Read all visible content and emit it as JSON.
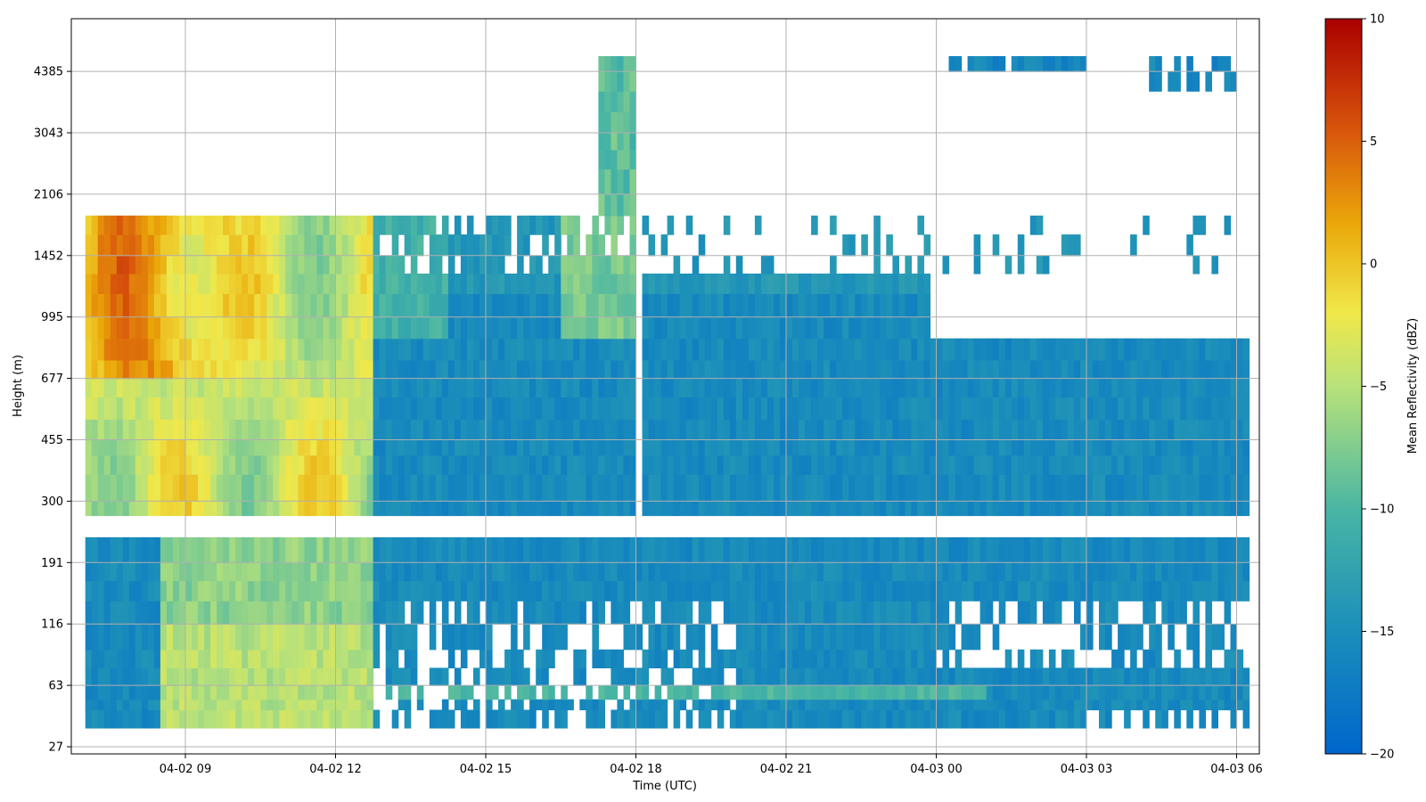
{
  "chart_data": {
    "type": "heatmap",
    "xlabel": "Time (UTC)",
    "ylabel": "Height (m)",
    "colorbar_label": "Mean Reflectivity (dBZ)",
    "grid": true,
    "colormap": "blue-green-yellow-red (jet-like)",
    "color_scale": {
      "min": -20,
      "max": 10
    },
    "colorbar_ticks": [
      "10",
      "5",
      "0",
      "−5",
      "−10",
      "−15",
      "−20"
    ],
    "x_ticks": [
      "04-02 09",
      "04-02 12",
      "04-02 15",
      "04-02 18",
      "04-02 21",
      "04-03 00",
      "04-03 03",
      "04-03 06"
    ],
    "y_ticks": [
      "27",
      "63",
      "116",
      "191",
      "300",
      "455",
      "677",
      "995",
      "1452",
      "2106",
      "3043",
      "4385"
    ],
    "x_range": [
      "04-02 06:45",
      "04-03 06:30"
    ],
    "height_rows_m": [
      27,
      35,
      45,
      52,
      63,
      75,
      90,
      116,
      140,
      165,
      191,
      230,
      270,
      300,
      360,
      410,
      455,
      520,
      600,
      677,
      760,
      870,
      995,
      1150,
      1300,
      1452,
      1650,
      1850,
      2106,
      2450,
      2750,
      3043,
      3450,
      3900,
      4385,
      4800
    ],
    "reflectivity_regions": [
      {
        "time": [
          "04-02 07:00",
          "04-02 12:45"
        ],
        "height_m": [
          270,
          1850
        ],
        "dbz_mean": -4,
        "description": "deep cloud layer, core up to +9 dBZ near 04-02 08:00 at 1000-1850 m"
      },
      {
        "time": [
          "04-02 12:45",
          "04-02 18:00"
        ],
        "height_m": [
          270,
          1850
        ],
        "dbz_mean": -15
      },
      {
        "time": [
          "04-02 17:15",
          "04-02 18:00"
        ],
        "height_m": [
          1850,
          5000
        ],
        "dbz_mean": -9
      },
      {
        "time": [
          "04-02 18:15",
          "04-02 23:30"
        ],
        "height_m": [
          270,
          1300
        ],
        "dbz_mean": -15
      },
      {
        "time": [
          "04-03 00:00",
          "04-03 06:15"
        ],
        "height_m": [
          270,
          850
        ],
        "dbz_mean": -16
      },
      {
        "time": [
          "04-03 00:00",
          "04-03 03:00"
        ],
        "height_m": [
          4300,
          5000
        ],
        "dbz_mean": -16
      },
      {
        "time": [
          "04-03 04:15",
          "04-03 06:00"
        ],
        "height_m": [
          3800,
          5000
        ],
        "dbz_mean": -14
      },
      {
        "time": [
          "04-02 07:00",
          "04-03 06:15"
        ],
        "height_m": [
          35,
          230
        ],
        "dbz_mean": -15,
        "description": "low-level layer, yellow/orange (−4 dBZ) between 04-02 08:30 and 12:45 below 116 m"
      },
      {
        "time": [
          "04-02 13:00",
          "04-03 01:00"
        ],
        "height_m": [
          52,
          63
        ],
        "dbz_mean": -10,
        "description": "green band near 55 m"
      }
    ]
  }
}
